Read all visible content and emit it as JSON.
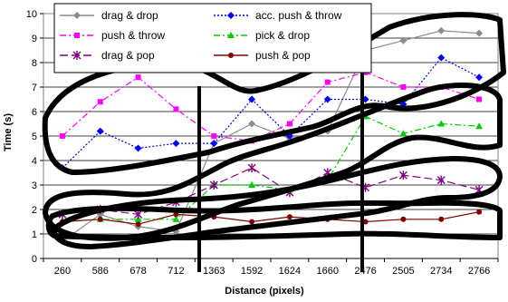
{
  "chart_data": {
    "type": "line",
    "xlabel": "Distance (pixels)",
    "ylabel": "Time (s)",
    "ylim": [
      0,
      10
    ],
    "yticks": [
      "0",
      "1",
      "2",
      "3",
      "4",
      "5",
      "6",
      "7",
      "8",
      "9",
      "10"
    ],
    "categories": [
      "260",
      "586",
      "678",
      "712",
      "1363",
      "1592",
      "1624",
      "1660",
      "2476",
      "2505",
      "2734",
      "2766"
    ],
    "grid": "horizontal",
    "legend": "top",
    "series": [
      {
        "name": "drag & drop",
        "color": "#8c8c8c",
        "dash": "solid",
        "marker": "diamond",
        "values": [
          0.7,
          1.8,
          1.3,
          1.1,
          4.7,
          5.5,
          4.9,
          5.2,
          8.5,
          8.9,
          9.3,
          9.2
        ]
      },
      {
        "name": "acc. push & throw",
        "color": "#0000ff",
        "dash": "dotted",
        "marker": "diamond",
        "values": [
          3.7,
          5.2,
          4.5,
          4.7,
          4.7,
          6.5,
          5.0,
          6.5,
          6.5,
          6.3,
          8.2,
          7.4
        ]
      },
      {
        "name": "push & throw",
        "color": "#ff00ff",
        "dash": "dashdot",
        "marker": "square",
        "values": [
          5.0,
          6.4,
          7.4,
          6.1,
          5.0,
          4.8,
          5.5,
          7.2,
          7.6,
          7.0,
          7.0,
          6.5
        ]
      },
      {
        "name": "pick & drop",
        "color": "#00cc00",
        "dash": "dashdot",
        "marker": "triangle",
        "values": [
          1.5,
          1.6,
          1.6,
          1.6,
          3.0,
          3.0,
          2.8,
          3.2,
          5.8,
          5.1,
          5.5,
          5.4
        ]
      },
      {
        "name": "drag & pop",
        "color": "#800080",
        "dash": "longdash",
        "marker": "star",
        "values": [
          1.8,
          2.0,
          1.8,
          2.3,
          3.0,
          3.7,
          2.7,
          3.5,
          2.9,
          3.4,
          3.2,
          2.8
        ]
      },
      {
        "name": "push & pop",
        "color": "#800000",
        "dash": "solid",
        "marker": "circle",
        "values": [
          1.5,
          1.6,
          1.4,
          1.8,
          1.7,
          1.5,
          1.7,
          1.6,
          1.5,
          1.6,
          1.6,
          1.9
        ]
      }
    ]
  }
}
